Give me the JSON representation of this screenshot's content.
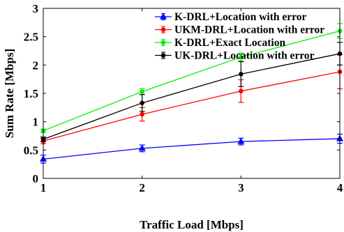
{
  "chart_data": {
    "type": "line",
    "title": "",
    "xlabel": "Traffic Load [Mbps]",
    "ylabel": "Sum Rate [Mbps]",
    "x": [
      1,
      2,
      3,
      4
    ],
    "xlim": [
      1,
      4
    ],
    "ylim": [
      0,
      3
    ],
    "xticks": [
      "1",
      "2",
      "3",
      "4"
    ],
    "yticks": [
      "0",
      "0.5",
      "1",
      "1.5",
      "2",
      "2.5",
      "3"
    ],
    "grid": false,
    "legend_position": "top-right",
    "series": [
      {
        "name": "K-DRL+Location with error",
        "color": "#0000ff",
        "marker": "triangle",
        "values": [
          0.34,
          0.53,
          0.65,
          0.7
        ],
        "error": [
          0.07,
          0.06,
          0.06,
          0.08
        ]
      },
      {
        "name": "UKM-DRL+Location with error",
        "color": "#ff0000",
        "marker": "circle",
        "values": [
          0.66,
          1.13,
          1.54,
          1.88
        ],
        "error": [
          0.05,
          0.12,
          0.2,
          0.3
        ]
      },
      {
        "name": "K-DRL+Exact Location",
        "color": "#00ee00",
        "marker": "circle",
        "values": [
          0.84,
          1.53,
          2.14,
          2.6
        ],
        "error": [
          0.03,
          0.05,
          0.07,
          0.13
        ]
      },
      {
        "name": "UK-DRL+Location with error",
        "color": "#000000",
        "marker": "circle",
        "values": [
          0.69,
          1.33,
          1.84,
          2.2
        ],
        "error": [
          0.04,
          0.15,
          0.22,
          0.2
        ]
      }
    ]
  }
}
